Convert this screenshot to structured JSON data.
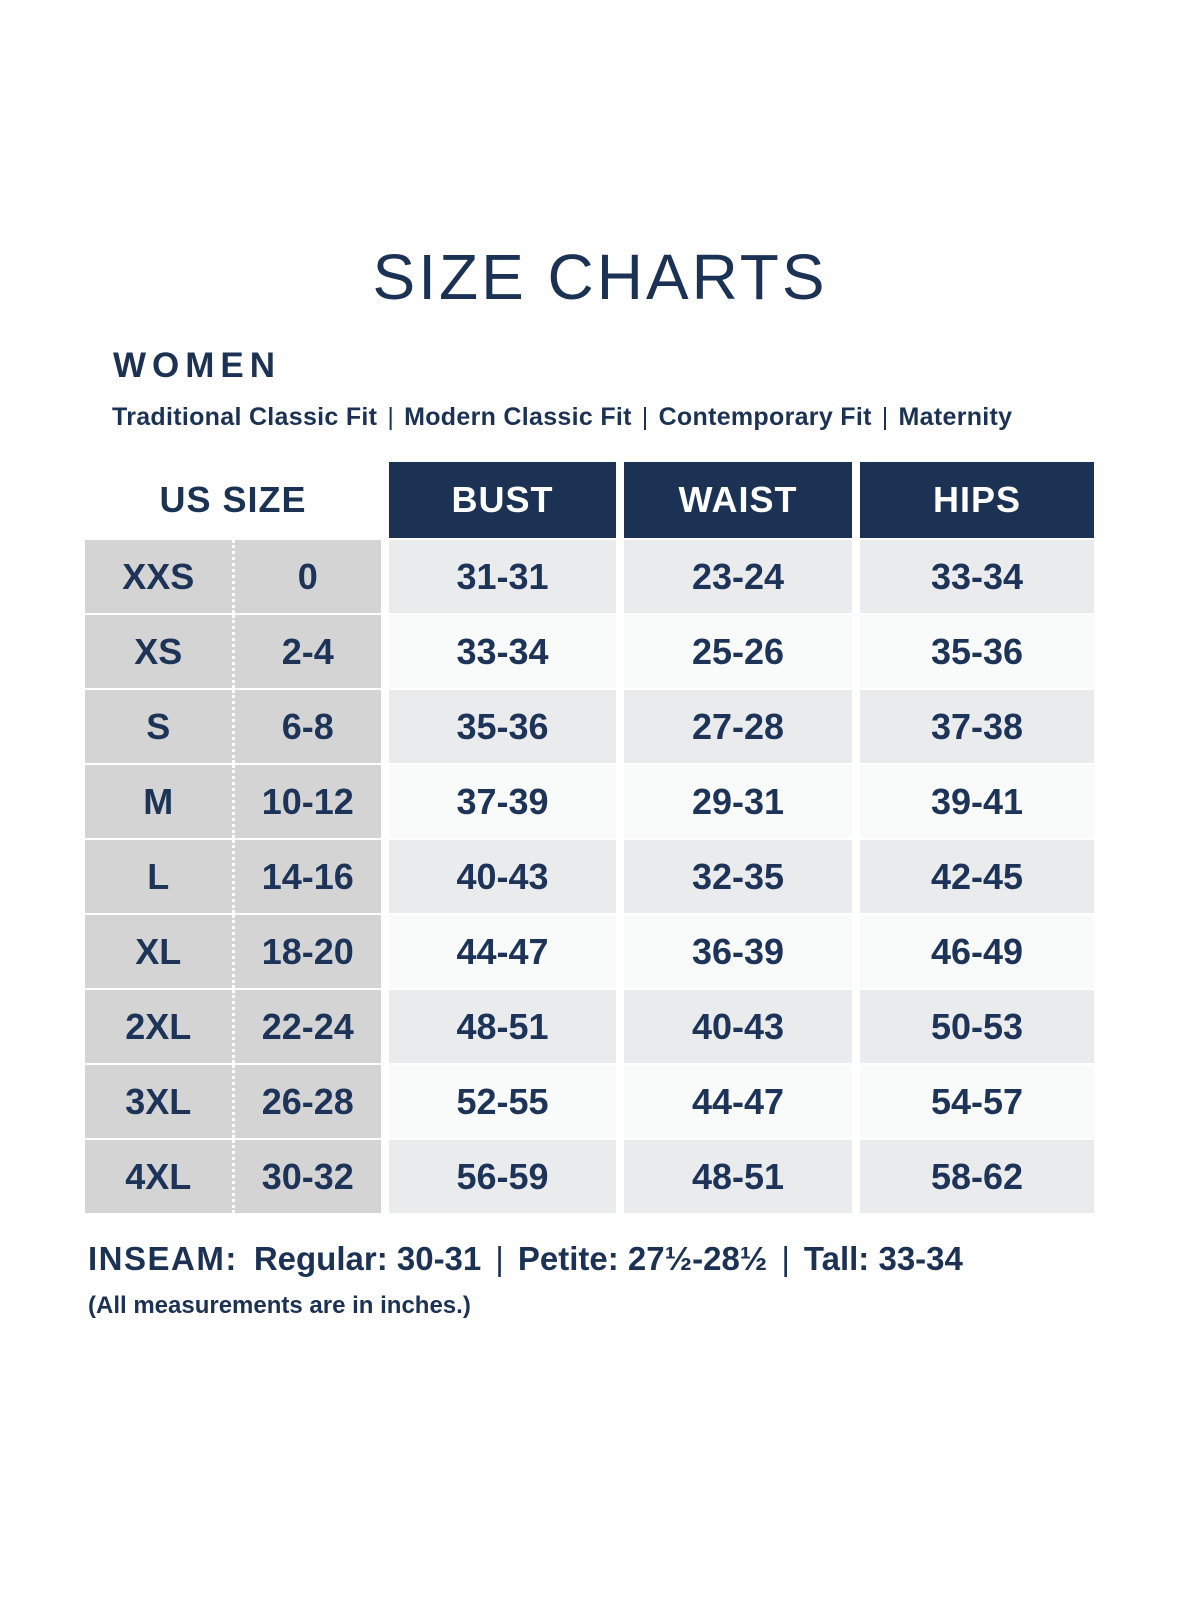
{
  "page": {
    "title": "SIZE CHARTS",
    "section_heading": "WOMEN",
    "fit_options": [
      "Traditional Classic Fit",
      "Modern Classic Fit",
      "Contemporary Fit",
      "Maternity"
    ],
    "fit_separator": "|"
  },
  "table": {
    "us_size_header": "US SIZE",
    "measure_headers": [
      "BUST",
      "WAIST",
      "HIPS"
    ],
    "rows": [
      {
        "size": "XXS",
        "us": "0",
        "bust": "31-31",
        "waist": "23-24",
        "hips": "33-34"
      },
      {
        "size": "XS",
        "us": "2-4",
        "bust": "33-34",
        "waist": "25-26",
        "hips": "35-36"
      },
      {
        "size": "S",
        "us": "6-8",
        "bust": "35-36",
        "waist": "27-28",
        "hips": "37-38"
      },
      {
        "size": "M",
        "us": "10-12",
        "bust": "37-39",
        "waist": "29-31",
        "hips": "39-41"
      },
      {
        "size": "L",
        "us": "14-16",
        "bust": "40-43",
        "waist": "32-35",
        "hips": "42-45"
      },
      {
        "size": "XL",
        "us": "18-20",
        "bust": "44-47",
        "waist": "36-39",
        "hips": "46-49"
      },
      {
        "size": "2XL",
        "us": "22-24",
        "bust": "48-51",
        "waist": "40-43",
        "hips": "50-53"
      },
      {
        "size": "3XL",
        "us": "26-28",
        "bust": "52-55",
        "waist": "44-47",
        "hips": "54-57"
      },
      {
        "size": "4XL",
        "us": "30-32",
        "bust": "56-59",
        "waist": "48-51",
        "hips": "58-62"
      }
    ]
  },
  "footer": {
    "inseam_label": "INSEAM:",
    "inseam_items": [
      "Regular: 30-31",
      "Petite: 27½-28½",
      "Tall: 33-34"
    ],
    "inseam_separator": "|",
    "note": "(All measurements are in inches.)"
  },
  "colors": {
    "navy": "#1c3254",
    "text_navy": "#1d3458",
    "gray_cell": "#d4d4d4",
    "light_row": "#eaebed",
    "white_row": "#f9fafa"
  }
}
